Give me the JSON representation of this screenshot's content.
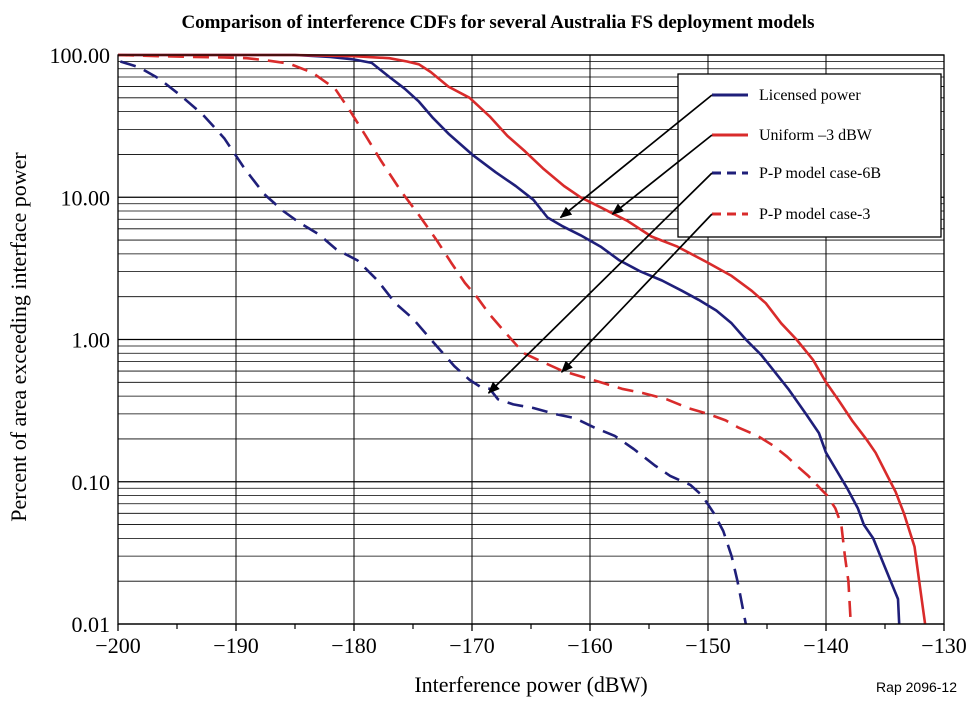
{
  "chart_data": {
    "type": "line",
    "title": "Comparison of interference CDFs for several Australia FS deployment models",
    "xlabel": "Interference power (dBW)",
    "ylabel": "Percent of area exceeding interface power",
    "reference": "Rap 2096-12",
    "xlim": [
      -200,
      -130
    ],
    "ylim": [
      0.01,
      100
    ],
    "y_scale": "log",
    "x_ticks": [
      "−200",
      "−190",
      "−180",
      "−170",
      "−160",
      "−150",
      "−140",
      "−130"
    ],
    "x_tick_values": [
      -200,
      -190,
      -180,
      -170,
      -160,
      -150,
      -140,
      -130
    ],
    "y_ticks": [
      "100.00",
      "10.00",
      "1.00",
      "0.10",
      "0.01"
    ],
    "y_tick_values": [
      100,
      10,
      1,
      0.1,
      0.01
    ],
    "grid": true,
    "legend_position": "top-right",
    "series": [
      {
        "name": "Licensed power",
        "color": "#1f1f7a",
        "dash": "solid",
        "x": [
          -200,
          -190,
          -185,
          -182,
          -180,
          -178.5,
          -177,
          -175.7,
          -174.5,
          -173.3,
          -172,
          -170,
          -168,
          -166.3,
          -164.8,
          -163.6,
          -162.4,
          -160.8,
          -159.1,
          -157.5,
          -155.7,
          -153.9,
          -152.2,
          -150.8,
          -149.3,
          -148,
          -146.8,
          -145.5,
          -144.4,
          -143.2,
          -141.7,
          -140.6,
          -140,
          -139.1,
          -138.2,
          -137.3,
          -136.8,
          -136,
          -135,
          -133.9,
          -133.8
        ],
        "y": [
          100,
          100,
          100,
          97,
          93,
          88,
          70,
          58,
          47,
          36,
          28,
          20,
          15,
          12,
          9.6,
          7.2,
          6.3,
          5.4,
          4.5,
          3.6,
          3.0,
          2.6,
          2.2,
          1.9,
          1.6,
          1.3,
          1.0,
          0.78,
          0.6,
          0.45,
          0.3,
          0.22,
          0.16,
          0.12,
          0.09,
          0.065,
          0.05,
          0.04,
          0.025,
          0.015,
          0.01
        ]
      },
      {
        "name": "Uniform –3 dBW",
        "color": "#d92b2b",
        "dash": "solid",
        "x": [
          -200,
          -190,
          -185,
          -180,
          -177,
          -175.5,
          -174.5,
          -173.5,
          -172,
          -170.2,
          -168.5,
          -167,
          -165.5,
          -164,
          -162.2,
          -160.8,
          -159.1,
          -156.8,
          -154.8,
          -152.6,
          -150.1,
          -148,
          -146.3,
          -145.1,
          -143.8,
          -142.5,
          -141.1,
          -140,
          -138.9,
          -137.8,
          -136.6,
          -135.8,
          -134.8,
          -134.1,
          -133.4,
          -132.5,
          -132.1,
          -131.6
        ],
        "y": [
          100,
          100,
          100,
          98,
          95,
          90,
          86,
          76,
          60,
          50,
          37,
          27,
          21,
          16,
          12,
          10,
          8.5,
          6.8,
          5.3,
          4.5,
          3.5,
          2.8,
          2.2,
          1.8,
          1.3,
          1.0,
          0.72,
          0.5,
          0.37,
          0.27,
          0.2,
          0.16,
          0.11,
          0.085,
          0.06,
          0.035,
          0.02,
          0.01
        ]
      },
      {
        "name": "P-P model case-6B",
        "color": "#1f1f7a",
        "dash": "dashed",
        "x": [
          -199.8,
          -198.2,
          -196.5,
          -194.7,
          -192.8,
          -191,
          -189.3,
          -187.6,
          -186,
          -184.6,
          -183,
          -181.5,
          -179.7,
          -178,
          -176.5,
          -175,
          -173,
          -171.5,
          -170.2,
          -169.2,
          -168.5,
          -167.8,
          -166.5,
          -164.8,
          -163,
          -161.3,
          -159.6,
          -157.9,
          -156.3,
          -154.5,
          -153.2,
          -151.5,
          -150.5,
          -149.5,
          -148.7,
          -148,
          -147.5,
          -147.2,
          -146.8
        ],
        "y": [
          90,
          82,
          68,
          52,
          38,
          26,
          16,
          10.5,
          8.0,
          6.6,
          5.5,
          4.3,
          3.6,
          2.6,
          1.8,
          1.4,
          0.9,
          0.65,
          0.52,
          0.46,
          0.45,
          0.38,
          0.35,
          0.33,
          0.3,
          0.28,
          0.24,
          0.21,
          0.17,
          0.13,
          0.11,
          0.095,
          0.08,
          0.06,
          0.045,
          0.03,
          0.02,
          0.015,
          0.01
        ]
      },
      {
        "name": "P-P model case-3",
        "color": "#d92b2b",
        "dash": "dashed",
        "x": [
          -200,
          -196.4,
          -193.6,
          -191,
          -189.1,
          -187.5,
          -185.5,
          -183.5,
          -181.6,
          -180.3,
          -179,
          -177.7,
          -176,
          -174.5,
          -173,
          -171.8,
          -170.6,
          -169.6,
          -168.5,
          -167.1,
          -165.6,
          -164.1,
          -162.3,
          -160.8,
          -159.1,
          -157.3,
          -155.5,
          -153.5,
          -151.7,
          -150,
          -148.5,
          -147.4,
          -145.8,
          -144.5,
          -143.3,
          -142.5,
          -141.5,
          -140.5,
          -139.9,
          -139.2,
          -138.7,
          -138.4,
          -138.1,
          -137.9
        ],
        "y": [
          100,
          98,
          97,
          96,
          95,
          92,
          87,
          75,
          58,
          40,
          27,
          18,
          11,
          7.5,
          5.0,
          3.5,
          2.5,
          2.0,
          1.5,
          1.1,
          0.8,
          0.7,
          0.6,
          0.55,
          0.5,
          0.45,
          0.42,
          0.38,
          0.33,
          0.3,
          0.27,
          0.24,
          0.21,
          0.18,
          0.15,
          0.13,
          0.11,
          0.09,
          0.08,
          0.065,
          0.05,
          0.03,
          0.02,
          0.01
        ]
      }
    ]
  }
}
